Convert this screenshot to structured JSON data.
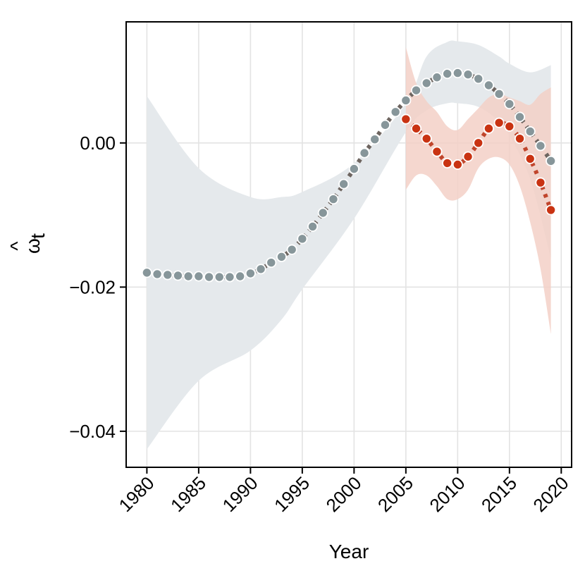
{
  "chart_data": {
    "type": "line",
    "xlabel": "Year",
    "ylabel": "ω̂t",
    "ylabel_parts": {
      "symbol": "ω",
      "hat": "^",
      "subscript": "t"
    },
    "xlim": [
      1978,
      2021
    ],
    "ylim": [
      -0.045,
      0.0168
    ],
    "x_ticks": [
      1980,
      1985,
      1990,
      1995,
      2000,
      2005,
      2010,
      2015,
      2020
    ],
    "x_tick_labels": [
      "1980",
      "1985",
      "1990",
      "1995",
      "2000",
      "2005",
      "2010",
      "2015",
      "2020"
    ],
    "y_ticks": [
      0.0,
      -0.02,
      -0.04
    ],
    "y_tick_labels": [
      "0.00",
      "−0.02",
      "−0.04"
    ],
    "grid": true,
    "legend": "none",
    "series": [
      {
        "color": "#87969a",
        "line_color": "#6e6560",
        "ribbon_color": "#e5e9ec",
        "x": [
          1980,
          1981,
          1982,
          1983,
          1984,
          1985,
          1986,
          1987,
          1988,
          1989,
          1990,
          1991,
          1992,
          1993,
          1994,
          1995,
          1996,
          1997,
          1998,
          1999,
          2000,
          2001,
          2002,
          2003,
          2004,
          2005,
          2006,
          2007,
          2008,
          2009,
          2010,
          2011,
          2012,
          2013,
          2014,
          2015,
          2016,
          2017,
          2018,
          2019
        ],
        "y": [
          -0.018,
          -0.0182,
          -0.0183,
          -0.0184,
          -0.0185,
          -0.0185,
          -0.0186,
          -0.0186,
          -0.0186,
          -0.0185,
          -0.0181,
          -0.0175,
          -0.0166,
          -0.0158,
          -0.0148,
          -0.0133,
          -0.0116,
          -0.0097,
          -0.0078,
          -0.0057,
          -0.0036,
          -0.0014,
          0.0005,
          0.0025,
          0.0043,
          0.0059,
          0.0073,
          0.0083,
          0.0091,
          0.0096,
          0.0097,
          0.0095,
          0.0089,
          0.008,
          0.0068,
          0.0054,
          0.0036,
          0.0016,
          -0.0004,
          -0.0025
        ],
        "ribbon_x": [
          1980,
          1985,
          1990,
          1993,
          1995,
          2000,
          2005,
          2007,
          2009,
          2010,
          2012,
          2014,
          2015,
          2017,
          2019
        ],
        "ribbon_lower": [
          -0.0425,
          -0.033,
          -0.0288,
          -0.0245,
          -0.0203,
          -0.0105,
          0.0015,
          0.0045,
          0.0055,
          0.0055,
          0.005,
          0.003,
          0.001,
          -0.005,
          -0.016
        ],
        "ribbon_upper": [
          0.0065,
          -0.0035,
          -0.0075,
          -0.0075,
          -0.0068,
          -0.0028,
          0.0055,
          0.012,
          0.014,
          0.0141,
          0.0136,
          0.012,
          0.011,
          0.0098,
          0.0108
        ]
      },
      {
        "color": "#c93312",
        "line_color": "#c0452c",
        "ribbon_color": "#f3d0c7",
        "x": [
          2005,
          2006,
          2007,
          2008,
          2009,
          2010,
          2011,
          2012,
          2013,
          2014,
          2015,
          2016,
          2017,
          2018,
          2019
        ],
        "y": [
          0.0033,
          0.002,
          0.0006,
          -0.0012,
          -0.0028,
          -0.003,
          -0.0019,
          0.0,
          0.002,
          0.0028,
          0.0023,
          0.0006,
          -0.0022,
          -0.0055,
          -0.0093
        ],
        "ribbon_x": [
          2005,
          2006,
          2007,
          2008,
          2009,
          2010,
          2011,
          2012,
          2013,
          2014,
          2015,
          2016,
          2017,
          2018,
          2019
        ],
        "ribbon_lower": [
          -0.0065,
          -0.0045,
          -0.0045,
          -0.006,
          -0.0078,
          -0.0078,
          -0.0065,
          -0.0035,
          -0.0022,
          -0.002,
          -0.003,
          -0.006,
          -0.011,
          -0.0175,
          -0.0265
        ],
        "ribbon_upper": [
          0.0133,
          0.0083,
          0.0058,
          0.0043,
          0.0023,
          0.0018,
          0.0033,
          0.0048,
          0.0063,
          0.0068,
          0.0063,
          0.0058,
          0.0053,
          0.0068,
          0.0077
        ]
      }
    ]
  }
}
